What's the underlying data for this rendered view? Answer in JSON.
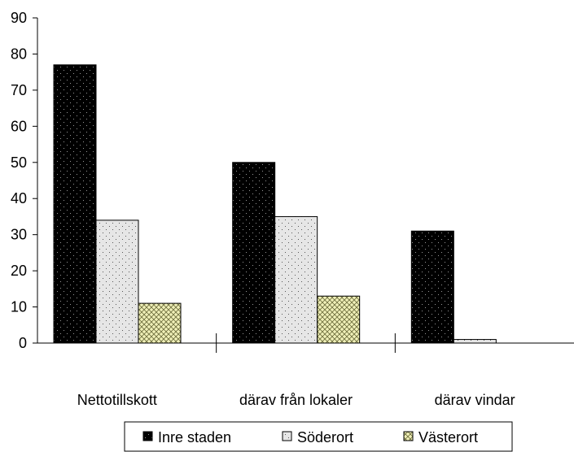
{
  "chart_data": {
    "type": "bar",
    "categories": [
      "Nettotillskott",
      "därav från lokaler",
      "därav vindar"
    ],
    "series": [
      {
        "name": "Inre staden",
        "values": [
          77,
          50,
          31
        ],
        "color": "#000000",
        "pattern": "dots-dark"
      },
      {
        "name": "Söderort",
        "values": [
          34,
          35,
          1
        ],
        "color": "#e6e6e6",
        "pattern": "dots-light"
      },
      {
        "name": "Västerort",
        "values": [
          11,
          13,
          0
        ],
        "color": "#f0f0b8",
        "pattern": "crosshatch"
      }
    ],
    "ylim": [
      0,
      90
    ],
    "yticks": [
      "0",
      "10",
      "20",
      "30",
      "40",
      "50",
      "60",
      "70",
      "80",
      "90"
    ],
    "grid": false,
    "legend_position": "bottom"
  }
}
